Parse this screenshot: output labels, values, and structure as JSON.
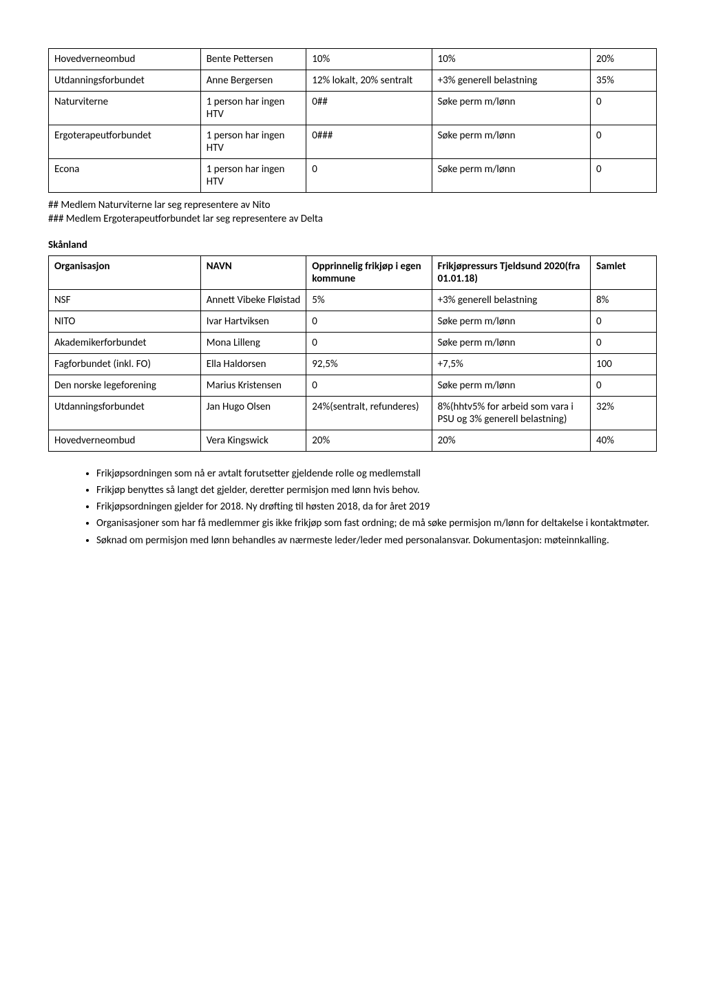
{
  "table1": {
    "rows": [
      {
        "org": "Hovedverneombud",
        "navn": "Bente Pettersen",
        "c3": "10%",
        "c4": "10%",
        "c5": "20%"
      },
      {
        "org": "Utdanningsforbundet",
        "navn": "Anne Bergersen",
        "c3": "12% lokalt, 20% sentralt",
        "c4": "+3% generell belastning",
        "c5": "35%"
      },
      {
        "org": "Naturviterne",
        "navn": "1 person har ingen HTV",
        "c3": "0##",
        "c4": "Søke perm m/lønn",
        "c5": "0"
      },
      {
        "org": "Ergoterapeutforbundet",
        "navn": "1 person har ingen HTV",
        "c3": "0###",
        "c4": "Søke perm m/lønn",
        "c5": "0"
      },
      {
        "org": "Econa",
        "navn": "1 person har ingen HTV",
        "c3": "0",
        "c4": "Søke perm m/lønn",
        "c5": "0"
      }
    ]
  },
  "notes": {
    "n1": "## Medlem Naturviterne lar seg representere av Nito",
    "n2": "### Medlem Ergoterapeutforbundet lar seg representere av Delta"
  },
  "sectionTitle": "Skånland",
  "table2": {
    "headers": {
      "h1": "Organisasjon",
      "h2": "NAVN",
      "h3": "Opprinnelig frikjøp i egen kommune",
      "h4": "Frikjøpressurs Tjeldsund 2020(fra 01.01.18)",
      "h5": "Samlet"
    },
    "rows": [
      {
        "org": "NSF",
        "navn": "Annett Vibeke Fløistad",
        "c3": "5%",
        "c4": "+3% generell belastning",
        "c5": "8%"
      },
      {
        "org": "NITO",
        "navn": "Ivar Hartviksen",
        "c3": "0",
        "c4": "Søke perm m/lønn",
        "c5": "0"
      },
      {
        "org": "Akademikerforbundet",
        "navn": "Mona Lilleng",
        "c3": "0",
        "c4": "Søke perm m/lønn",
        "c5": "0"
      },
      {
        "org": "Fagforbundet (inkl. FO)",
        "navn": "Ella Haldorsen",
        "c3": "92,5%",
        "c4": "+7,5%",
        "c5": "100"
      },
      {
        "org": "Den norske legeforening",
        "navn": "Marius Kristensen",
        "c3": "0",
        "c4": "Søke perm m/lønn",
        "c5": "0"
      },
      {
        "org": "Utdanningsforbundet",
        "navn": "Jan Hugo Olsen",
        "c3": "24%(sentralt, refunderes)",
        "c4": "8%(hhtv5% for arbeid som vara i PSU og 3% generell belastning)",
        "c5": "32%"
      },
      {
        "org": "Hovedverneombud",
        "navn": "Vera Kingswick",
        "c3": "20%",
        "c4": "20%",
        "c5": "40%"
      }
    ]
  },
  "bullets": [
    "Frikjøpsordningen som nå er avtalt forutsetter gjeldende rolle og medlemstall",
    "Frikjøp benyttes så langt det gjelder, deretter permisjon med lønn hvis behov.",
    "Frikjøpsordningen gjelder for 2018. Ny drøfting til høsten 2018, da for året 2019",
    "Organisasjoner som har få medlemmer gis ikke frikjøp som fast ordning; de må søke permisjon m/lønn for deltakelse i kontaktmøter.",
    "Søknad om permisjon med lønn behandles av nærmeste leder/leder med personalansvar. Dokumentasjon: møteinnkalling."
  ],
  "colors": {
    "text": "#000000",
    "border": "#000000",
    "background": "#ffffff"
  },
  "typography": {
    "body_fontsize_pt": 11,
    "font_family": "Calibri"
  }
}
